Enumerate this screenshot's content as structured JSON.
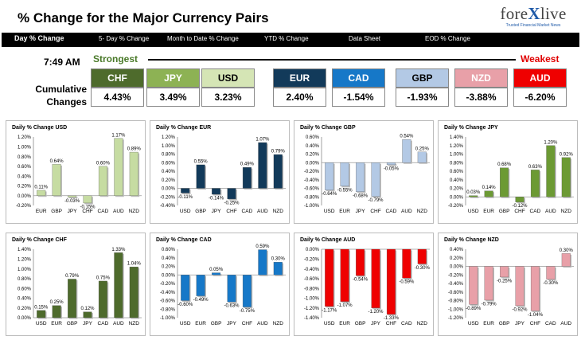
{
  "header": {
    "title": "% Change for the Major Currency Pairs"
  },
  "logo": {
    "text_left": "fore",
    "text_x": "X",
    "text_right": "live",
    "tagline": "Trusted Financial Market News"
  },
  "nav": {
    "items": [
      "Day % Change",
      "5- Day % Change",
      "Month to Date % Change",
      "YTD % Change",
      "Data Sheet",
      "EOD % Change"
    ]
  },
  "summary": {
    "time": "7:49 AM",
    "strongest_label": "Strongest",
    "weakest_label": "Weakest",
    "cumulative_label": "Cumulative Changes",
    "currencies": [
      {
        "code": "CHF",
        "value": "4.43%",
        "color": "#4e6b2c",
        "text_color": "#ffffff"
      },
      {
        "code": "JPY",
        "value": "3.49%",
        "color": "#8db254",
        "text_color": "#ffffff"
      },
      {
        "code": "USD",
        "value": "3.23%",
        "color": "#d5e5b5",
        "text_color": "#000000"
      },
      {
        "code": "EUR",
        "value": "2.40%",
        "color": "#123a5a",
        "text_color": "#ffffff"
      },
      {
        "code": "CAD",
        "value": "-1.54%",
        "color": "#1678c8",
        "text_color": "#ffffff"
      },
      {
        "code": "GBP",
        "value": "-1.93%",
        "color": "#b3c9e5",
        "text_color": "#000000"
      },
      {
        "code": "NZD",
        "value": "-3.88%",
        "color": "#e8a0a8",
        "text_color": "#ffffff"
      },
      {
        "code": "AUD",
        "value": "-6.20%",
        "color": "#ef0000",
        "text_color": "#ffffff"
      }
    ]
  },
  "chart_data": [
    {
      "type": "bar",
      "title": "Daily % Change USD",
      "color": "#c6dca2",
      "categories": [
        "EUR",
        "GBP",
        "JPY",
        "CHF",
        "CAD",
        "AUD",
        "NZD"
      ],
      "values": [
        0.11,
        0.64,
        -0.03,
        -0.15,
        0.6,
        1.17,
        0.89
      ],
      "labels": [
        "0.11%",
        "0.64%",
        "-0.03%",
        "-0.15%",
        "0.60%",
        "1.17%",
        "0.89%"
      ],
      "ylim": [
        -0.2,
        1.2
      ],
      "yticks": [
        -0.2,
        0,
        0.2,
        0.4,
        0.6,
        0.8,
        1.0,
        1.2
      ],
      "ytick_labels": [
        "-0.20%",
        "0.00%",
        "0.20%",
        "0.40%",
        "0.60%",
        "0.80%",
        "1.00%",
        "1.20%"
      ]
    },
    {
      "type": "bar",
      "title": "Daily % Change EUR",
      "color": "#123a5a",
      "categories": [
        "USD",
        "GBP",
        "JPY",
        "CHF",
        "CAD",
        "AUD",
        "NZD"
      ],
      "values": [
        -0.11,
        0.55,
        -0.14,
        -0.25,
        0.49,
        1.07,
        0.79
      ],
      "labels": [
        "-0.11%",
        "0.55%",
        "-0.14%",
        "-0.25%",
        "0.49%",
        "1.07%",
        "0.79%"
      ],
      "ylim": [
        -0.4,
        1.2
      ],
      "yticks": [
        -0.4,
        -0.2,
        0,
        0.2,
        0.4,
        0.6,
        0.8,
        1.0,
        1.2
      ],
      "ytick_labels": [
        "-0.40%",
        "-0.20%",
        "0.00%",
        "0.20%",
        "0.40%",
        "0.60%",
        "0.80%",
        "1.00%",
        "1.20%"
      ]
    },
    {
      "type": "bar",
      "title": "Daily % Change GBP",
      "color": "#b3c9e5",
      "categories": [
        "USD",
        "EUR",
        "JPY",
        "CHF",
        "CAD",
        "AUD",
        "NZD"
      ],
      "values": [
        -0.64,
        -0.55,
        -0.68,
        -0.79,
        -0.05,
        0.54,
        0.25
      ],
      "labels": [
        "-0.64%",
        "-0.55%",
        "-0.68%",
        "-0.79%",
        "-0.05%",
        "0.54%",
        "0.25%"
      ],
      "ylim": [
        -1.0,
        0.6
      ],
      "yticks": [
        -1.0,
        -0.8,
        -0.6,
        -0.4,
        -0.2,
        0,
        0.2,
        0.4,
        0.6
      ],
      "ytick_labels": [
        "-1.00%",
        "-0.80%",
        "-0.60%",
        "-0.40%",
        "-0.20%",
        "0.00%",
        "0.20%",
        "0.40%",
        "0.60%"
      ]
    },
    {
      "type": "bar",
      "title": "Daily % Change JPY",
      "color": "#6c9a34",
      "categories": [
        "USD",
        "EUR",
        "GBP",
        "CHF",
        "CAD",
        "AUD",
        "NZD"
      ],
      "values": [
        0.03,
        0.14,
        0.68,
        -0.12,
        0.63,
        1.2,
        0.92
      ],
      "labels": [
        "0.03%",
        "0.14%",
        "0.68%",
        "-0.12%",
        "0.63%",
        "1.20%",
        "0.92%"
      ],
      "ylim": [
        -0.2,
        1.4
      ],
      "yticks": [
        -0.2,
        0,
        0.2,
        0.4,
        0.6,
        0.8,
        1.0,
        1.2,
        1.4
      ],
      "ytick_labels": [
        "-0.20%",
        "0.00%",
        "0.20%",
        "0.40%",
        "0.60%",
        "0.80%",
        "1.00%",
        "1.20%",
        "1.40%"
      ]
    },
    {
      "type": "bar",
      "title": "Daily % Change CHF",
      "color": "#4e6b2c",
      "categories": [
        "USD",
        "EUR",
        "GBP",
        "JPY",
        "CAD",
        "AUD",
        "NZD"
      ],
      "values": [
        0.15,
        0.25,
        0.79,
        0.12,
        0.75,
        1.33,
        1.04
      ],
      "labels": [
        "0.15%",
        "0.25%",
        "0.79%",
        "0.12%",
        "0.75%",
        "1.33%",
        "1.04%"
      ],
      "ylim": [
        0,
        1.4
      ],
      "yticks": [
        0,
        0.2,
        0.4,
        0.6,
        0.8,
        1.0,
        1.2,
        1.4
      ],
      "ytick_labels": [
        "0.00%",
        "0.20%",
        "0.40%",
        "0.60%",
        "0.80%",
        "1.00%",
        "1.20%",
        "1.40%"
      ]
    },
    {
      "type": "bar",
      "title": "Daily % Change CAD",
      "color": "#1678c8",
      "categories": [
        "USD",
        "EUR",
        "GBP",
        "JPY",
        "CHF",
        "AUD",
        "NZD"
      ],
      "values": [
        -0.6,
        -0.49,
        0.05,
        -0.63,
        -0.75,
        0.59,
        0.3
      ],
      "labels": [
        "-0.60%",
        "-0.49%",
        "0.05%",
        "-0.63%",
        "-0.75%",
        "0.59%",
        "0.30%"
      ],
      "ylim": [
        -1.0,
        0.6
      ],
      "yticks": [
        -1.0,
        -0.8,
        -0.6,
        -0.4,
        -0.2,
        0,
        0.2,
        0.4,
        0.6
      ],
      "ytick_labels": [
        "-1.00%",
        "-0.80%",
        "-0.60%",
        "-0.40%",
        "-0.20%",
        "0.00%",
        "0.20%",
        "0.40%",
        "0.60%"
      ]
    },
    {
      "type": "bar",
      "title": "Daily % Change AUD",
      "color": "#ef0000",
      "categories": [
        "USD",
        "EUR",
        "GBP",
        "JPY",
        "CHF",
        "CAD",
        "NZD"
      ],
      "values": [
        -1.17,
        -1.07,
        -0.54,
        -1.2,
        -1.33,
        -0.59,
        -0.3
      ],
      "labels": [
        "-1.17%",
        "-1.07%",
        "-0.54%",
        "-1.20%",
        "-1.33%",
        "-0.59%",
        "-0.30%"
      ],
      "ylim": [
        -1.4,
        0
      ],
      "yticks": [
        -1.4,
        -1.2,
        -1.0,
        -0.8,
        -0.6,
        -0.4,
        -0.2,
        0
      ],
      "ytick_labels": [
        "-1.40%",
        "-1.20%",
        "-1.00%",
        "-0.80%",
        "-0.60%",
        "-0.40%",
        "-0.20%",
        "0.00%"
      ]
    },
    {
      "type": "bar",
      "title": "Daily % Change NZD",
      "color": "#e8a0a8",
      "categories": [
        "USD",
        "EUR",
        "GBP",
        "JPY",
        "CHF",
        "CAD",
        "AUD"
      ],
      "values": [
        -0.89,
        -0.79,
        -0.25,
        -0.92,
        -1.04,
        -0.3,
        0.3
      ],
      "labels": [
        "-0.89%",
        "-0.79%",
        "-0.25%",
        "-0.92%",
        "-1.04%",
        "-0.30%",
        "0.30%"
      ],
      "ylim": [
        -1.2,
        0.4
      ],
      "yticks": [
        -1.2,
        -1.0,
        -0.8,
        -0.6,
        -0.4,
        -0.2,
        0,
        0.2,
        0.4
      ],
      "ytick_labels": [
        "-1.20%",
        "-1.00%",
        "-0.80%",
        "-0.60%",
        "-0.40%",
        "-0.20%",
        "0.00%",
        "0.20%",
        "0.40%"
      ]
    }
  ]
}
